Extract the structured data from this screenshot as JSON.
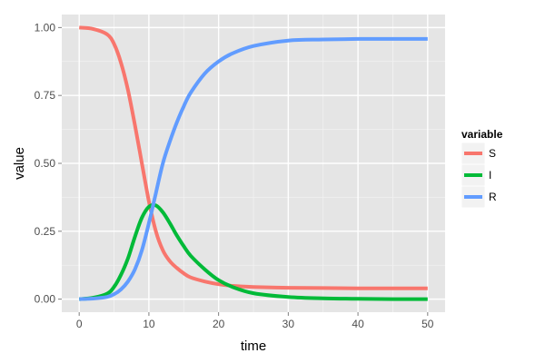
{
  "chart_data": {
    "type": "line",
    "xlabel": "time",
    "ylabel": "value",
    "xlim": [
      -2.5,
      52.5
    ],
    "ylim": [
      -0.048,
      1.048
    ],
    "x_ticks": [
      0,
      10,
      20,
      30,
      40,
      50
    ],
    "x_tick_labels": [
      "0",
      "10",
      "20",
      "30",
      "40",
      "50"
    ],
    "y_ticks": [
      0,
      0.25,
      0.5,
      0.75,
      1.0
    ],
    "y_tick_labels": [
      "0.00",
      "0.25",
      "0.50",
      "0.75",
      "1.00"
    ],
    "grid": true,
    "legend": {
      "title": "variable",
      "position": "right"
    },
    "x": [
      0,
      2,
      4,
      5,
      6,
      7,
      8,
      9,
      10,
      11,
      12,
      13,
      14,
      15,
      16,
      18,
      20,
      22,
      25,
      30,
      35,
      40,
      45,
      50
    ],
    "series": [
      {
        "name": "S",
        "color": "#F8766D",
        "values": [
          1.0,
          0.995,
          0.975,
          0.94,
          0.87,
          0.77,
          0.64,
          0.5,
          0.36,
          0.25,
          0.18,
          0.14,
          0.115,
          0.095,
          0.08,
          0.065,
          0.055,
          0.049,
          0.045,
          0.042,
          0.041,
          0.04,
          0.04,
          0.04
        ]
      },
      {
        "name": "I",
        "color": "#00BA38",
        "values": [
          0.0,
          0.005,
          0.02,
          0.045,
          0.09,
          0.15,
          0.23,
          0.3,
          0.34,
          0.345,
          0.32,
          0.28,
          0.235,
          0.195,
          0.16,
          0.11,
          0.07,
          0.045,
          0.022,
          0.008,
          0.003,
          0.001,
          0.0,
          0.0
        ]
      },
      {
        "name": "R",
        "color": "#619CFF",
        "values": [
          0.0,
          0.002,
          0.008,
          0.018,
          0.036,
          0.065,
          0.11,
          0.18,
          0.28,
          0.39,
          0.5,
          0.58,
          0.65,
          0.71,
          0.76,
          0.83,
          0.875,
          0.905,
          0.932,
          0.952,
          0.956,
          0.958,
          0.958,
          0.958
        ]
      }
    ]
  },
  "colors": {
    "panel_background": "#E5E5E5",
    "grid_major": "#FFFFFF",
    "grid_minor": "#F2F2F2",
    "legend_key_background": "#F2F2F2"
  }
}
